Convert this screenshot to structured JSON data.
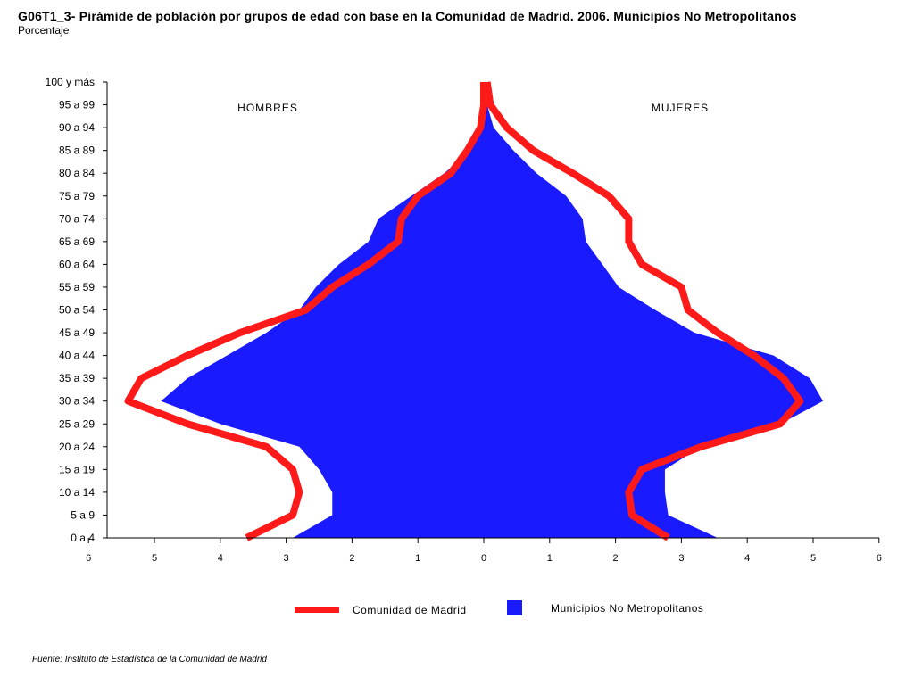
{
  "chart_data": {
    "type": "area",
    "title": "G06T1_3- Pirámide de población por grupos de edad con base en la Comunidad de Madrid.  2006.  Municipios No Metropolitanos",
    "subtitle": "Porcentaje",
    "source": "Fuente: Instituto de Estadística de la Comunidad de Madrid",
    "left_label": "HOMBRES",
    "right_label": "MUJERES",
    "categories": [
      "0 a 4",
      "5 a 9",
      "10 a 14",
      "15 a 19",
      "20 a 24",
      "25 a 29",
      "30 a 34",
      "35 a 39",
      "40 a 44",
      "45 a 49",
      "50 a 54",
      "55 a 59",
      "60 a 64",
      "65 a 69",
      "70 a 74",
      "75 a 79",
      "80 a 84",
      "85 a 89",
      "90 a 94",
      "95 a 99",
      "100 y más"
    ],
    "x_ticks_left": [
      "6",
      "5",
      "4",
      "3",
      "2",
      "1",
      "0"
    ],
    "x_ticks_right": [
      "1",
      "2",
      "3",
      "4",
      "5",
      "6"
    ],
    "xlim": [
      -6,
      6
    ],
    "series": [
      {
        "name": "Municipios No Metropolitanos",
        "type": "area",
        "color": "#1a1aff",
        "hombres": [
          2.9,
          2.3,
          2.3,
          2.5,
          2.8,
          4.0,
          4.9,
          4.5,
          3.9,
          3.3,
          2.8,
          2.55,
          2.2,
          1.75,
          1.6,
          1.1,
          0.6,
          0.2,
          0.1,
          0.05,
          0.01
        ],
        "mujeres": [
          3.55,
          2.8,
          2.75,
          2.75,
          3.3,
          4.5,
          5.15,
          4.95,
          4.4,
          3.2,
          2.6,
          2.05,
          1.8,
          1.55,
          1.5,
          1.25,
          0.8,
          0.45,
          0.15,
          0.05,
          0.01
        ]
      },
      {
        "name": "Comunidad de Madrid",
        "type": "line",
        "color": "#ff1a1a",
        "hombres": [
          3.6,
          2.9,
          2.8,
          2.9,
          3.3,
          4.5,
          5.4,
          5.2,
          4.5,
          3.7,
          2.7,
          2.3,
          1.75,
          1.3,
          1.25,
          1.0,
          0.5,
          0.25,
          0.05,
          0.0,
          0.0
        ],
        "mujeres": [
          2.8,
          2.25,
          2.2,
          2.4,
          3.3,
          4.5,
          4.8,
          4.55,
          4.1,
          3.55,
          3.1,
          3.0,
          2.4,
          2.2,
          2.2,
          1.9,
          1.35,
          0.75,
          0.35,
          0.1,
          0.05
        ]
      }
    ],
    "legend_position": "bottom",
    "grid": false
  }
}
